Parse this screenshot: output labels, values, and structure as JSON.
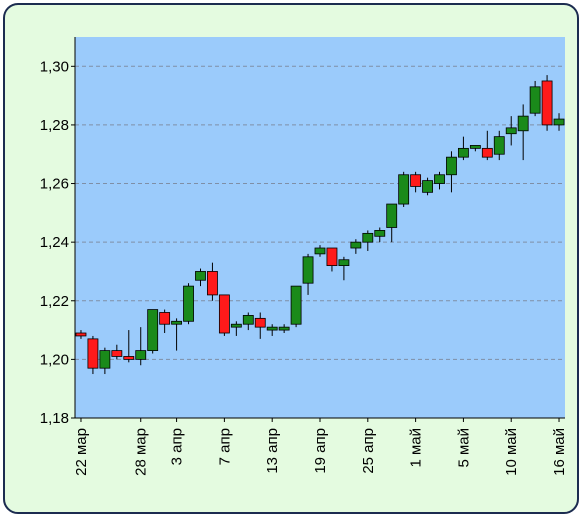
{
  "chart_data": {
    "type": "candlestick",
    "categories": [
      "22 мар",
      null,
      null,
      null,
      null,
      "28 мар",
      null,
      null,
      "3 апр",
      null,
      null,
      null,
      "7 апр",
      null,
      null,
      null,
      "13 апр",
      null,
      null,
      null,
      "19 апр",
      null,
      null,
      null,
      "25 апр",
      null,
      null,
      null,
      "1 май",
      null,
      null,
      null,
      "5 май",
      null,
      null,
      null,
      "10 май",
      null,
      null,
      null,
      "16 май"
    ],
    "open": [
      1.209,
      1.207,
      1.197,
      1.203,
      1.201,
      1.2,
      1.203,
      1.216,
      1.212,
      1.213,
      1.227,
      1.23,
      1.222,
      1.211,
      1.212,
      1.214,
      1.21,
      1.21,
      1.212,
      1.226,
      1.236,
      1.238,
      1.232,
      1.238,
      1.24,
      1.242,
      1.245,
      1.253,
      1.263,
      1.257,
      1.26,
      1.263,
      1.269,
      1.272,
      1.272,
      1.27,
      1.277,
      1.278,
      1.284,
      1.295,
      1.28
    ],
    "high": [
      1.21,
      1.208,
      1.204,
      1.205,
      1.21,
      1.211,
      1.217,
      1.217,
      1.214,
      1.226,
      1.231,
      1.233,
      1.222,
      1.213,
      1.216,
      1.216,
      1.212,
      1.212,
      1.225,
      1.236,
      1.239,
      1.238,
      1.235,
      1.241,
      1.244,
      1.245,
      1.253,
      1.264,
      1.264,
      1.262,
      1.264,
      1.271,
      1.276,
      1.273,
      1.278,
      1.278,
      1.283,
      1.287,
      1.295,
      1.297,
      1.284
    ],
    "low": [
      1.207,
      1.195,
      1.195,
      1.2,
      1.199,
      1.198,
      1.202,
      1.209,
      1.203,
      1.212,
      1.225,
      1.22,
      1.208,
      1.208,
      1.21,
      1.207,
      1.208,
      1.209,
      1.211,
      1.222,
      1.235,
      1.23,
      1.227,
      1.236,
      1.237,
      1.24,
      1.24,
      1.252,
      1.257,
      1.256,
      1.258,
      1.257,
      1.268,
      1.271,
      1.268,
      1.268,
      1.273,
      1.268,
      1.283,
      1.278,
      1.278
    ],
    "close": [
      1.208,
      1.197,
      1.203,
      1.201,
      1.2,
      1.203,
      1.217,
      1.212,
      1.213,
      1.225,
      1.23,
      1.222,
      1.209,
      1.212,
      1.215,
      1.211,
      1.211,
      1.211,
      1.225,
      1.235,
      1.238,
      1.232,
      1.234,
      1.24,
      1.243,
      1.244,
      1.253,
      1.263,
      1.259,
      1.261,
      1.263,
      1.269,
      1.272,
      1.273,
      1.269,
      1.276,
      1.279,
      1.283,
      1.293,
      1.28,
      1.282
    ],
    "up_color": "#1a8a1a",
    "down_color": "#ff1a1a",
    "ylim": [
      1.18,
      1.31
    ],
    "yticks": [
      {
        "value": 1.18,
        "label": "1,18"
      },
      {
        "value": 1.2,
        "label": "1,20"
      },
      {
        "value": 1.22,
        "label": "1,22"
      },
      {
        "value": 1.24,
        "label": "1,24"
      },
      {
        "value": 1.26,
        "label": "1,26"
      },
      {
        "value": 1.28,
        "label": "1,28"
      },
      {
        "value": 1.3,
        "label": "1,30"
      }
    ],
    "grid": true
  }
}
